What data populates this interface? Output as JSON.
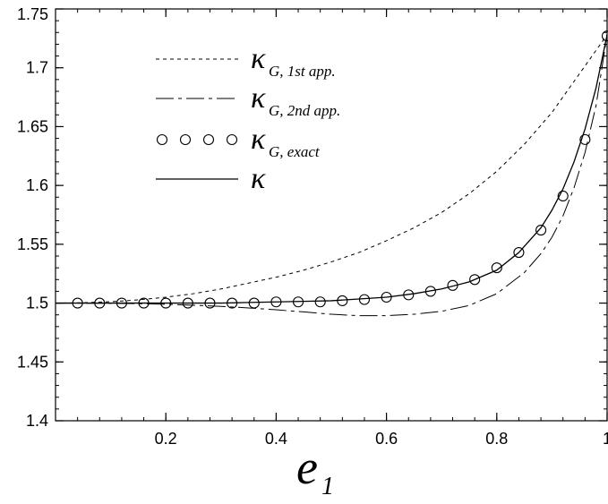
{
  "chart_data": {
    "type": "line",
    "xlabel": {
      "main": "e",
      "subscript": "1"
    },
    "ylabel": "",
    "xlim": [
      0,
      1
    ],
    "ylim": [
      1.4,
      1.75
    ],
    "x_ticks": [
      0.2,
      0.4,
      0.6,
      0.8,
      1
    ],
    "x_tick_labels": [
      "0.2",
      "0.4",
      "0.6",
      "0.8",
      "1"
    ],
    "y_ticks": [
      1.4,
      1.45,
      1.5,
      1.55,
      1.6,
      1.65,
      1.7,
      1.75
    ],
    "y_tick_labels": [
      "1.4",
      "1.45",
      "1.5",
      "1.55",
      "1.6",
      "1.65",
      "1.7",
      "1.75"
    ],
    "grid": false,
    "legend_position": "top-left",
    "series": [
      {
        "name": "κ G, 1st app.",
        "legend_main": "κ",
        "legend_sub": "G, 1st app.",
        "style": "dotted",
        "x": [
          0.0,
          0.05,
          0.1,
          0.15,
          0.2,
          0.25,
          0.3,
          0.35,
          0.4,
          0.45,
          0.5,
          0.55,
          0.6,
          0.65,
          0.7,
          0.75,
          0.8,
          0.85,
          0.9,
          0.95,
          1.0
        ],
        "y": [
          1.5,
          1.5003,
          1.5012,
          1.5027,
          1.505,
          1.508,
          1.512,
          1.517,
          1.522,
          1.528,
          1.535,
          1.543,
          1.553,
          1.564,
          1.577,
          1.593,
          1.612,
          1.635,
          1.662,
          1.695,
          1.728
        ]
      },
      {
        "name": "κ G, 2nd app.",
        "legend_main": "κ",
        "legend_sub": "G, 2nd app.",
        "style": "dashdot",
        "x": [
          0.0,
          0.05,
          0.1,
          0.15,
          0.2,
          0.25,
          0.3,
          0.35,
          0.4,
          0.45,
          0.5,
          0.55,
          0.6,
          0.65,
          0.7,
          0.75,
          0.8,
          0.85,
          0.88,
          0.9,
          0.92,
          0.94,
          0.96,
          0.98,
          1.0
        ],
        "y": [
          1.5,
          1.4999,
          1.4998,
          1.4995,
          1.499,
          1.4982,
          1.4972,
          1.4959,
          1.4943,
          1.4925,
          1.4905,
          1.4893,
          1.4893,
          1.4905,
          1.493,
          1.498,
          1.508,
          1.526,
          1.542,
          1.556,
          1.574,
          1.598,
          1.628,
          1.668,
          1.728
        ]
      },
      {
        "name": "κ G, exact",
        "legend_main": "κ",
        "legend_sub": "G, exact",
        "style": "markers",
        "x": [
          0.04,
          0.08,
          0.12,
          0.16,
          0.2,
          0.24,
          0.28,
          0.32,
          0.36,
          0.4,
          0.44,
          0.48,
          0.52,
          0.56,
          0.6,
          0.64,
          0.68,
          0.72,
          0.76,
          0.8,
          0.84,
          0.88,
          0.92,
          0.96,
          1.0
        ],
        "y": [
          1.5,
          1.5,
          1.5,
          1.5,
          1.5,
          1.5,
          1.5,
          1.5,
          1.5,
          1.501,
          1.501,
          1.501,
          1.502,
          1.503,
          1.505,
          1.507,
          1.51,
          1.515,
          1.52,
          1.53,
          1.543,
          1.562,
          1.591,
          1.639,
          1.727
        ]
      },
      {
        "name": "κ",
        "legend_main": "κ",
        "legend_sub": "",
        "style": "solid",
        "x": [
          0.0,
          0.05,
          0.1,
          0.15,
          0.2,
          0.25,
          0.3,
          0.35,
          0.4,
          0.45,
          0.5,
          0.55,
          0.6,
          0.65,
          0.7,
          0.75,
          0.8,
          0.84,
          0.88,
          0.9,
          0.92,
          0.94,
          0.96,
          0.98,
          1.0
        ],
        "y": [
          1.5,
          1.5,
          1.5,
          1.5,
          1.5,
          1.5,
          1.5,
          1.5005,
          1.501,
          1.5015,
          1.502,
          1.5035,
          1.505,
          1.508,
          1.512,
          1.518,
          1.528,
          1.543,
          1.564,
          1.579,
          1.597,
          1.62,
          1.648,
          1.683,
          1.728
        ]
      }
    ]
  }
}
